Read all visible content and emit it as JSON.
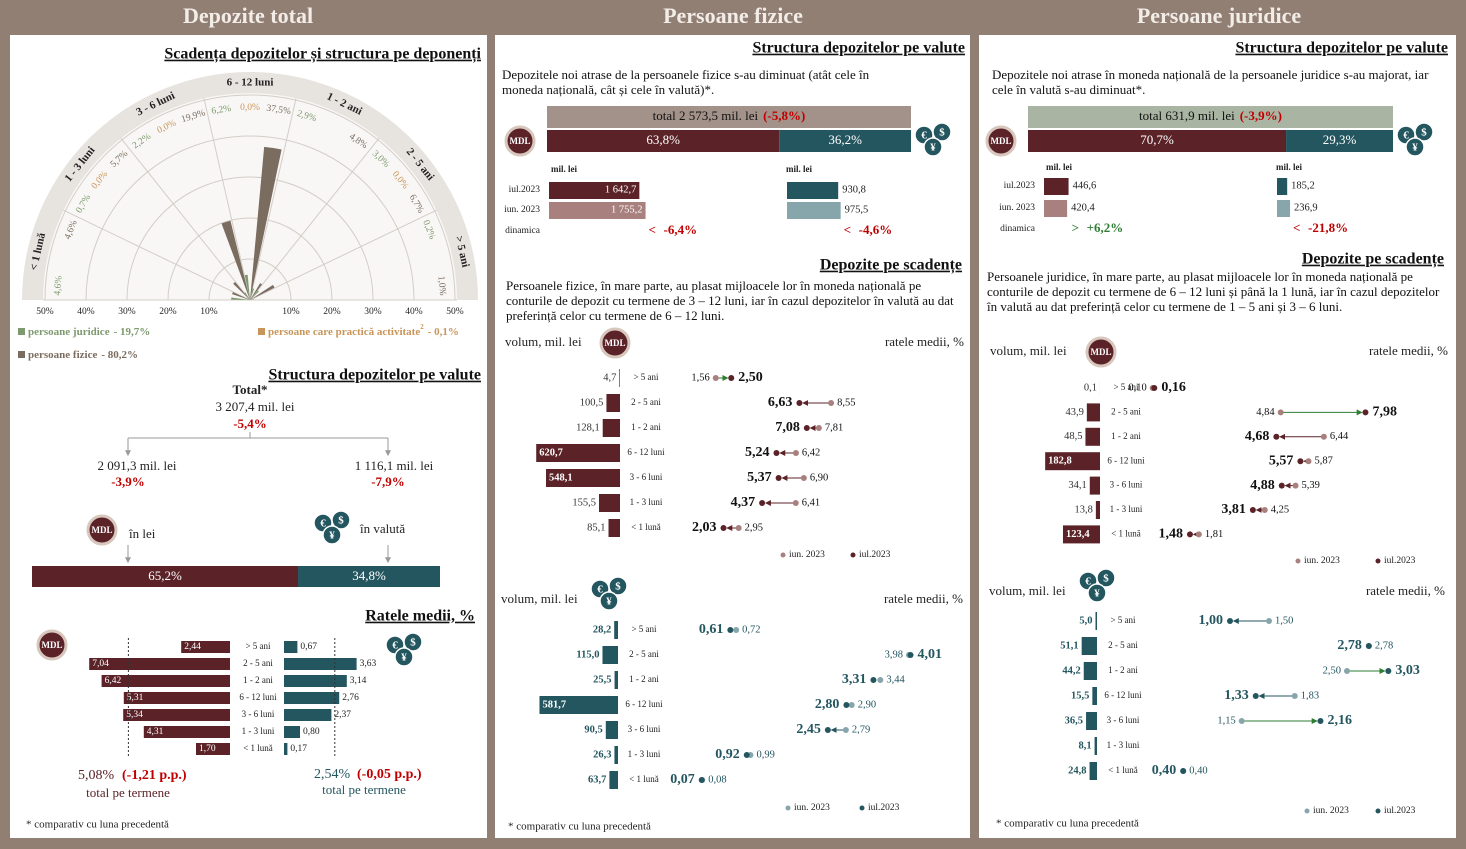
{
  "badge": "MDL",
  "currency_icon": [
    "€",
    "$",
    "¥"
  ],
  "colors": {
    "mdl": "#5b2328",
    "mdl_light": "#a8807e",
    "valuta": "#245660",
    "valuta_light": "#86a6ab",
    "increase": "#2e7d32",
    "decrease": "#c00000"
  },
  "total": {
    "header": "Depozite total",
    "polar": {
      "title": "Scadența depozitelor și structura pe deponenți",
      "categories": [
        "< 1 lună",
        "1 - 3 luni",
        "3 - 6 luni",
        "6 - 12 luni",
        "1 - 2 ani",
        "2 - 5 ani",
        "> 5 ani"
      ],
      "rlim": [
        0,
        50
      ],
      "rticks": [
        {
          "value": 10,
          "label": "10%"
        },
        {
          "value": 20,
          "label": "20%"
        },
        {
          "value": 30,
          "label": "30%"
        },
        {
          "value": 40,
          "label": "40%"
        },
        {
          "value": 50,
          "label": "50%"
        }
      ],
      "series": [
        {
          "name": "persoane juridice",
          "share_label": "- 19,7%",
          "color": "#7d9a6e",
          "values": [
            4.6,
            0.7,
            2.2,
            6.2,
            2.9,
            3.0,
            0.2
          ],
          "value_labels": [
            "4,6%",
            "0,7%",
            "2,2%",
            "6,2%",
            "2,9%",
            "3,0%",
            "0,2%"
          ]
        },
        {
          "name": "persoane care practică activitate",
          "note": "2",
          "share_label": "- 0,1%",
          "color": "#c8955a",
          "values": [
            null,
            0.0,
            0.0,
            0.0,
            null,
            0.0,
            null
          ],
          "value_labels": [
            null,
            "0,0%",
            "0,0%",
            "0,0%",
            null,
            "0,0%",
            null
          ]
        },
        {
          "name": "persoane fizice",
          "share_label": "- 80,2%",
          "color": "#7b6c60",
          "values": [
            4.6,
            5.7,
            19.9,
            37.5,
            4.8,
            6.7,
            1.0
          ],
          "value_labels": [
            "4,6%",
            "5,7%",
            "19,9%",
            "37,5%",
            "4,8%",
            "6,7%",
            "1,0%"
          ]
        }
      ]
    },
    "currency": {
      "title": "Structura depozitelor pe valute",
      "total_label": "Total*",
      "total_amount": "3 207,4 mil. lei",
      "total_change": "-5,4%",
      "mdl": {
        "amount": "2 091,3 mil. lei",
        "change": "-3,9%",
        "label": "în lei"
      },
      "valuta": {
        "amount": "1 116,1 mil. lei",
        "change": "-7,9%",
        "label": "în valută"
      },
      "shares": [
        65.2,
        34.8
      ],
      "share_labels": [
        "65,2%",
        "34,8%"
      ]
    },
    "rates": {
      "title": "Ratele medii, %",
      "categories": [
        "> 5 ani",
        "2 - 5 ani",
        "1 - 2 ani",
        "6 - 12 luni",
        "3 - 6 luni",
        "1 - 3 luni",
        "< 1 lună"
      ],
      "mdl": {
        "values": [
          2.44,
          7.04,
          6.42,
          5.31,
          5.34,
          4.31,
          1.7
        ],
        "value_labels": [
          "2,44",
          "7,04",
          "6,42",
          "5,31",
          "5,34",
          "4,31",
          "1,70"
        ],
        "total": 5.08,
        "total_label": "5,08%",
        "change": "(-1,21 p.p.)",
        "caption": "total pe termene"
      },
      "valuta": {
        "values": [
          0.67,
          3.63,
          3.14,
          2.76,
          2.37,
          0.8,
          0.17
        ],
        "value_labels": [
          "0,67",
          "3,63",
          "3,14",
          "2,76",
          "2,37",
          "0,80",
          "0,17"
        ],
        "total": 2.54,
        "total_label": "2,54%",
        "change": "(-0,05 p.p.)",
        "caption": "total pe termene"
      }
    },
    "footnote": "* comparativ cu luna precedentă"
  },
  "fizice": {
    "header": "Persoane fizice",
    "currency": {
      "title": "Structura depozitelor pe valute",
      "text": "Depozitele noi atrase de la persoanele fizice s-au diminuat (atât cele în moneda națională, cât și cele în valută)*.",
      "total_label": "total 2 573,5 mil. lei",
      "total_change": "(-5,8%)",
      "total_color": "#a39289",
      "shares": [
        63.8,
        36.2
      ],
      "share_labels": [
        "63,8%",
        "36,2%"
      ],
      "unit": "mil. lei",
      "rows": [
        "iul.2023",
        "iun. 2023",
        "dinamica"
      ],
      "mdl": {
        "values": [
          1642.7,
          1755.2
        ],
        "value_labels": [
          "1 642,7",
          "1 755,2"
        ],
        "direction": "<",
        "change": "-6,4%"
      },
      "valuta": {
        "values": [
          930.8,
          975.5
        ],
        "value_labels": [
          "930,8",
          "975,5"
        ],
        "direction": "<",
        "change": "-4,6%"
      }
    },
    "maturity": {
      "title": "Depozite pe scadențe",
      "text": "Persoanele fizice, în mare parte, au plasat mijloacele lor în moneda națională pe conturile de depozit cu termene de 3 – 12 luni, iar în cazul depozitelor în valută au dat preferință celor cu termene de 6 – 12 luni.",
      "volume_label": "volum, mil. lei",
      "rate_label": "ratele medii, %",
      "categories": [
        "> 5 ani",
        "2 - 5 ani",
        "1 - 2 ani",
        "6 - 12 luni",
        "3 - 6 luni",
        "1 - 3 luni",
        "< 1 lună"
      ],
      "legend": [
        "iun. 2023",
        "iul.2023"
      ],
      "mdl": {
        "volumes": [
          4.7,
          100.5,
          128.1,
          620.7,
          548.1,
          155.5,
          85.1
        ],
        "volume_labels": [
          "4,7",
          "100,5",
          "128,1",
          "620,7",
          "548,1",
          "155,5",
          "85,1"
        ],
        "jul": [
          2.5,
          6.63,
          7.08,
          5.24,
          5.37,
          4.37,
          2.03
        ],
        "jul_labels": [
          "2,50",
          "6,63",
          "7,08",
          "5,24",
          "5,37",
          "4,37",
          "2,03"
        ],
        "jun": [
          1.56,
          8.55,
          7.81,
          6.42,
          6.9,
          6.41,
          2.95
        ],
        "jun_labels": [
          "1,56",
          "8,55",
          "7,81",
          "6,42",
          "6,90",
          "6,41",
          "2,95"
        ]
      },
      "valuta": {
        "volumes": [
          28.2,
          115.0,
          25.5,
          581.7,
          90.5,
          26.3,
          63.7
        ],
        "volume_labels": [
          "28,2",
          "115,0",
          "25,5",
          "581,7",
          "90,5",
          "26,3",
          "63,7"
        ],
        "jul": [
          0.61,
          4.01,
          3.31,
          2.8,
          2.45,
          0.92,
          0.07
        ],
        "jul_labels": [
          "0,61",
          "4,01",
          "3,31",
          "2,80",
          "2,45",
          "0,92",
          "0,07"
        ],
        "jun": [
          0.72,
          3.98,
          3.44,
          2.9,
          2.79,
          0.99,
          0.08
        ],
        "jun_labels": [
          "0,72",
          "3,98",
          "3,44",
          "2,90",
          "2,79",
          "0,99",
          "0,08"
        ]
      }
    },
    "footnote": "* comparativ cu luna precedentă"
  },
  "juridice": {
    "header": "Persoane juridice",
    "currency": {
      "title": "Structura depozitelor pe valute",
      "text": "Depozitele noi atrase în moneda națională de la persoanele juridice s-au majorat, iar cele în valută s-au diminuat*.",
      "total_label": "total 631,9 mil. lei",
      "total_change": "(-3,9%)",
      "total_color": "#a9b5a2",
      "shares": [
        70.7,
        29.3
      ],
      "share_labels": [
        "70,7%",
        "29,3%"
      ],
      "unit": "mil. lei",
      "rows": [
        "iul.2023",
        "iun. 2023",
        "dinamica"
      ],
      "mdl": {
        "values": [
          446.6,
          420.4
        ],
        "value_labels": [
          "446,6",
          "420,4"
        ],
        "direction": ">",
        "change": "+6,2%"
      },
      "valuta": {
        "values": [
          185.2,
          236.9
        ],
        "value_labels": [
          "185,2",
          "236,9"
        ],
        "direction": "<",
        "change": "-21,8%"
      }
    },
    "maturity": {
      "title": "Depozite pe scadențe",
      "text": "Persoanele juridice, în mare parte, au plasat mijloacele lor în moneda națională pe conturile de depozit cu termene de 6 – 12 luni și până la 1 lună, iar în cazul depozitelor în valută au dat preferință celor cu termene de 1 – 5 ani și 3 – 6 luni.",
      "volume_label": "volum, mil. lei",
      "rate_label": "ratele medii, %",
      "categories": [
        "> 5 ani",
        "2 - 5 ani",
        "1 - 2 ani",
        "6 - 12 luni",
        "3 - 6 luni",
        "1 - 3 luni",
        "< 1 lună"
      ],
      "legend": [
        "iun. 2023",
        "iul.2023"
      ],
      "mdl": {
        "volumes": [
          0.1,
          43.9,
          48.5,
          182.8,
          34.1,
          13.8,
          123.4
        ],
        "volume_labels": [
          "0,1",
          "43,9",
          "48,5",
          "182,8",
          "34,1",
          "13,8",
          "123,4"
        ],
        "jul": [
          0.16,
          7.98,
          4.68,
          5.57,
          4.88,
          3.81,
          1.48
        ],
        "jul_labels": [
          "0,16",
          "7,98",
          "4,68",
          "5,57",
          "4,88",
          "3,81",
          "1,48"
        ],
        "jun": [
          0.1,
          4.84,
          6.44,
          5.87,
          5.39,
          4.25,
          1.81
        ],
        "jun_labels": [
          "0,10",
          "4,84",
          "6,44",
          "5,87",
          "5,39",
          "4,25",
          "1,81"
        ]
      },
      "valuta": {
        "volumes": [
          5.0,
          51.1,
          44.2,
          15.5,
          36.5,
          8.1,
          24.8
        ],
        "volume_labels": [
          "5,0",
          "51,1",
          "44,2",
          "15,5",
          "36,5",
          "8,1",
          "24,8"
        ],
        "jul": [
          1.0,
          2.78,
          3.03,
          1.33,
          2.16,
          null,
          0.4
        ],
        "jul_labels": [
          "1,00",
          "2,78",
          "3,03",
          "1,33",
          "2,16",
          null,
          "0,40"
        ],
        "jun": [
          1.5,
          2.78,
          2.5,
          1.83,
          1.15,
          null,
          0.4
        ],
        "jun_labels": [
          "1,50",
          "2,78",
          "2,50",
          "1,83",
          "1,15",
          null,
          "0,40"
        ]
      }
    },
    "footnote": "* comparativ cu luna precedentă"
  }
}
